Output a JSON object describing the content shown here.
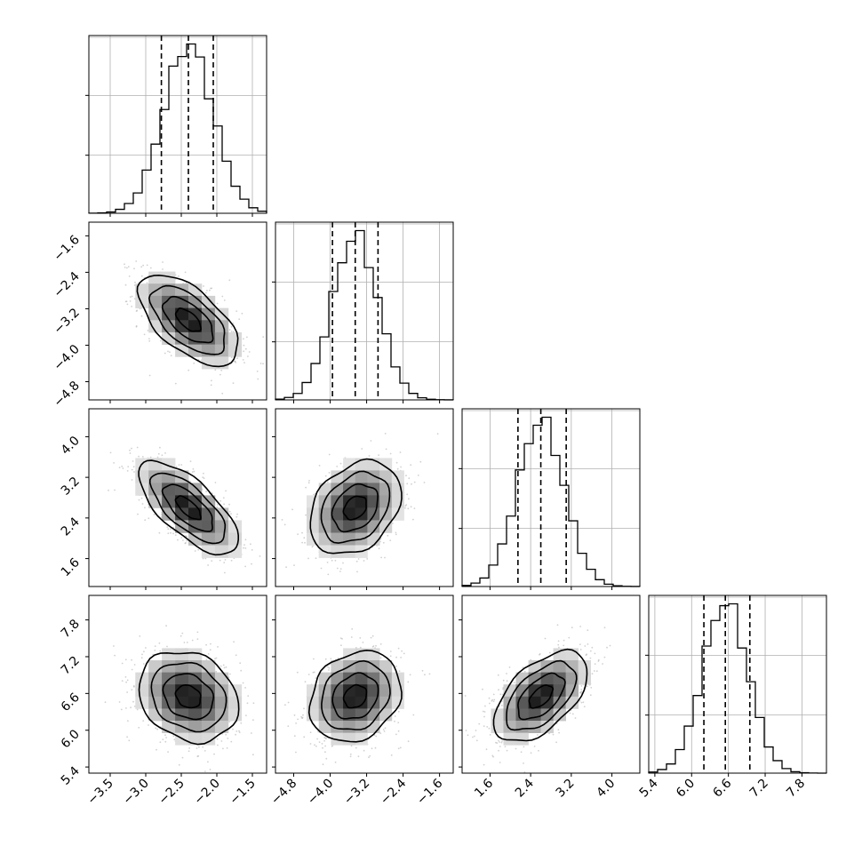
{
  "chart_data": {
    "type": "corner",
    "n_params": 4,
    "grid": true,
    "parameters": [
      {
        "index": 0,
        "range": [
          -3.8,
          -1.3
        ],
        "ticks": [
          -3.5,
          -3.0,
          -2.5,
          -2.0,
          -1.5
        ],
        "tick_labels": [
          "−3.5",
          "−3.0",
          "−2.5",
          "−2.0",
          "−1.5"
        ],
        "quantiles": [
          -2.78,
          -2.4,
          -2.05
        ],
        "mean": -2.4,
        "sd": 0.35
      },
      {
        "index": 1,
        "range": [
          -5.2,
          -1.3
        ],
        "ticks": [
          -4.8,
          -4.0,
          -3.2,
          -2.4,
          -1.6
        ],
        "tick_labels": [
          "−4.8",
          "−4.0",
          "−3.2",
          "−2.4",
          "−1.6"
        ],
        "quantiles": [
          -3.95,
          -3.45,
          -2.95
        ],
        "mean": -3.45,
        "sd": 0.5
      },
      {
        "index": 2,
        "range": [
          1.05,
          4.55
        ],
        "ticks": [
          1.6,
          2.4,
          3.2,
          4.0
        ],
        "tick_labels": [
          "1.6",
          "2.4",
          "3.2",
          "4.0"
        ],
        "quantiles": [
          2.15,
          2.6,
          3.1
        ],
        "mean": 2.6,
        "sd": 0.46
      },
      {
        "index": 3,
        "range": [
          5.3,
          8.2
        ],
        "ticks": [
          5.4,
          6.0,
          6.6,
          7.2,
          7.8
        ],
        "tick_labels": [
          "5.4",
          "6.0",
          "6.6",
          "7.2",
          "7.8"
        ],
        "quantiles": [
          6.2,
          6.55,
          6.95
        ],
        "mean": 6.55,
        "sd": 0.37
      }
    ],
    "correlations": {
      "1-0": -0.6,
      "2-0": -0.7,
      "3-0": -0.2,
      "2-1": 0.3,
      "3-1": 0.2,
      "3-2": 0.55
    },
    "contour_levels_sigma": [
      0.5,
      1.0,
      1.5,
      2.0
    ]
  }
}
